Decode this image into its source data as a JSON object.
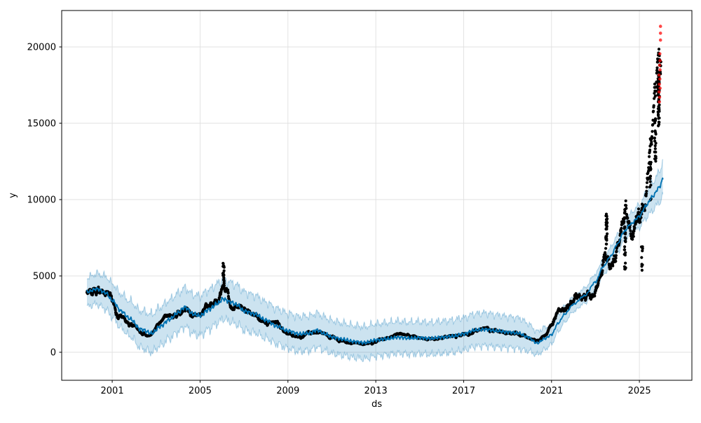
{
  "figure": {
    "background": "#ffffff"
  },
  "chart_data": {
    "type": "scatter",
    "title": "",
    "xlabel": "ds",
    "ylabel": "y",
    "xlim": [
      1998.7,
      2027.39
    ],
    "ylim": [
      -1835,
      22385
    ],
    "x_ticks": [
      2001,
      2005,
      2009,
      2013,
      2017,
      2021,
      2025
    ],
    "y_ticks": [
      0,
      5000,
      10000,
      15000,
      20000
    ],
    "grid": true,
    "legend": "none",
    "colors": {
      "observed": "#000000",
      "forecast_line": "#0072B2",
      "uncertainty_band": "rgba(0,114,178,0.2)",
      "band_edge": "rgba(0,114,178,0.30)",
      "anomaly": "#ff0000",
      "grid": "#e0e0e0",
      "spine": "#000000"
    },
    "series": [
      {
        "name": "observed",
        "type": "scatter",
        "marker_radius": 2.1,
        "x_start": 1999.85,
        "x_end": 2025.98,
        "trend": [
          [
            1999.85,
            3900
          ],
          [
            2000.1,
            4350
          ],
          [
            2000.4,
            4100
          ],
          [
            2000.7,
            4200
          ],
          [
            2001.0,
            3400
          ],
          [
            2001.3,
            2600
          ],
          [
            2001.7,
            2100
          ],
          [
            2002.0,
            1800
          ],
          [
            2002.3,
            1350
          ],
          [
            2002.7,
            1000
          ],
          [
            2003.0,
            1400
          ],
          [
            2003.4,
            2000
          ],
          [
            2003.8,
            2500
          ],
          [
            2004.1,
            2800
          ],
          [
            2004.35,
            3100
          ],
          [
            2004.7,
            2300
          ],
          [
            2005.0,
            2350
          ],
          [
            2005.4,
            2800
          ],
          [
            2005.8,
            3300
          ],
          [
            2006.0,
            4300
          ],
          [
            2006.2,
            3900
          ],
          [
            2006.45,
            3200
          ],
          [
            2006.8,
            3000
          ],
          [
            2007.2,
            2700
          ],
          [
            2007.6,
            2600
          ],
          [
            2008.0,
            2100
          ],
          [
            2008.4,
            1900
          ],
          [
            2008.8,
            1500
          ],
          [
            2009.2,
            1250
          ],
          [
            2009.6,
            1150
          ],
          [
            2010.0,
            1250
          ],
          [
            2010.25,
            1500
          ],
          [
            2010.6,
            1200
          ],
          [
            2011.0,
            950
          ],
          [
            2011.5,
            800
          ],
          [
            2012.0,
            700
          ],
          [
            2012.4,
            550
          ],
          [
            2012.8,
            650
          ],
          [
            2013.2,
            850
          ],
          [
            2013.6,
            900
          ],
          [
            2014.1,
            1050
          ],
          [
            2014.5,
            950
          ],
          [
            2015.0,
            950
          ],
          [
            2015.5,
            880
          ],
          [
            2016.0,
            1000
          ],
          [
            2016.5,
            1100
          ],
          [
            2017.0,
            1200
          ],
          [
            2017.4,
            1450
          ],
          [
            2017.8,
            1600
          ],
          [
            2018.3,
            1500
          ],
          [
            2018.8,
            1400
          ],
          [
            2019.3,
            1300
          ],
          [
            2019.7,
            1150
          ],
          [
            2020.1,
            800
          ],
          [
            2020.4,
            700
          ],
          [
            2020.7,
            950
          ],
          [
            2021.0,
            1600
          ],
          [
            2021.3,
            2300
          ],
          [
            2021.6,
            2600
          ],
          [
            2022.0,
            2950
          ],
          [
            2022.4,
            3300
          ],
          [
            2022.8,
            3800
          ],
          [
            2023.1,
            4600
          ],
          [
            2023.5,
            7200
          ],
          [
            2023.8,
            5800
          ],
          [
            2024.1,
            6300
          ],
          [
            2024.35,
            7700
          ],
          [
            2024.6,
            7200
          ],
          [
            2024.9,
            8600
          ],
          [
            2025.1,
            9300
          ],
          [
            2025.35,
            10500
          ],
          [
            2025.55,
            12000
          ],
          [
            2025.7,
            14200
          ],
          [
            2025.85,
            16600
          ],
          [
            2025.98,
            17400
          ]
        ],
        "volatility": [
          [
            1999.85,
            0.03
          ],
          [
            2006,
            0.028
          ],
          [
            2012,
            0.033
          ],
          [
            2019,
            0.028
          ],
          [
            2021,
            0.03
          ],
          [
            2023,
            0.032
          ],
          [
            2026,
            0.03
          ]
        ],
        "spike_clusters": [
          {
            "x": 2006.07,
            "lo": 4400,
            "hi": 5850,
            "n": 22
          },
          {
            "x": 2023.5,
            "lo": 6800,
            "hi": 9100,
            "n": 26
          },
          {
            "x": 2024.35,
            "lo": 5300,
            "hi": 9900,
            "n": 30
          },
          {
            "x": 2025.12,
            "lo": 5200,
            "hi": 7000,
            "n": 10
          },
          {
            "x": 2025.5,
            "lo": 9800,
            "hi": 12500,
            "n": 18
          },
          {
            "x": 2025.72,
            "lo": 12400,
            "hi": 15400,
            "n": 20
          },
          {
            "x": 2025.88,
            "lo": 14800,
            "hi": 18400,
            "n": 50
          }
        ]
      },
      {
        "name": "forecast",
        "type": "line",
        "width": 1.8,
        "x_start": 1999.85,
        "x_end": 2026.08,
        "points": [
          [
            1999.85,
            3950
          ],
          [
            2000.3,
            4150
          ],
          [
            2000.7,
            3900
          ],
          [
            2001.0,
            3400
          ],
          [
            2001.4,
            2700
          ],
          [
            2001.8,
            2200
          ],
          [
            2002.3,
            1500
          ],
          [
            2002.8,
            1250
          ],
          [
            2003.2,
            1700
          ],
          [
            2003.6,
            2150
          ],
          [
            2004.0,
            2600
          ],
          [
            2004.3,
            2950
          ],
          [
            2004.7,
            2500
          ],
          [
            2005.0,
            2400
          ],
          [
            2005.4,
            2800
          ],
          [
            2005.8,
            3200
          ],
          [
            2006.05,
            3500
          ],
          [
            2006.35,
            3300
          ],
          [
            2006.7,
            3100
          ],
          [
            2007.0,
            2700
          ],
          [
            2007.5,
            2500
          ],
          [
            2008.0,
            2100
          ],
          [
            2008.5,
            1700
          ],
          [
            2009.0,
            1400
          ],
          [
            2009.5,
            1200
          ],
          [
            2010.0,
            1250
          ],
          [
            2010.3,
            1450
          ],
          [
            2010.7,
            1200
          ],
          [
            2011.0,
            1000
          ],
          [
            2011.5,
            850
          ],
          [
            2012.0,
            700
          ],
          [
            2012.5,
            620
          ],
          [
            2013.0,
            800
          ],
          [
            2013.5,
            880
          ],
          [
            2014.0,
            980
          ],
          [
            2014.5,
            920
          ],
          [
            2015.0,
            950
          ],
          [
            2015.5,
            900
          ],
          [
            2016.0,
            980
          ],
          [
            2016.5,
            1050
          ],
          [
            2017.0,
            1200
          ],
          [
            2017.5,
            1450
          ],
          [
            2018.0,
            1500
          ],
          [
            2018.5,
            1400
          ],
          [
            2019.0,
            1320
          ],
          [
            2019.5,
            1250
          ],
          [
            2019.9,
            1000
          ],
          [
            2020.35,
            600
          ],
          [
            2020.7,
            900
          ],
          [
            2021.0,
            1150
          ],
          [
            2021.3,
            1900
          ],
          [
            2021.6,
            2500
          ],
          [
            2022.0,
            3150
          ],
          [
            2022.5,
            3700
          ],
          [
            2023.0,
            4600
          ],
          [
            2023.35,
            5600
          ],
          [
            2023.7,
            6300
          ],
          [
            2024.0,
            7100
          ],
          [
            2024.3,
            7900
          ],
          [
            2024.6,
            8400
          ],
          [
            2025.0,
            8900
          ],
          [
            2025.3,
            9600
          ],
          [
            2025.6,
            10200
          ],
          [
            2025.9,
            10800
          ],
          [
            2026.08,
            11350
          ]
        ]
      },
      {
        "name": "uncertainty",
        "type": "band",
        "halfwidth": [
          [
            1999.85,
            950
          ],
          [
            2001,
            1100
          ],
          [
            2003,
            1250
          ],
          [
            2006,
            1300
          ],
          [
            2009,
            1150
          ],
          [
            2012,
            1050
          ],
          [
            2015,
            1050
          ],
          [
            2018,
            1070
          ],
          [
            2019.5,
            1000
          ],
          [
            2020.5,
            750
          ],
          [
            2021.3,
            550
          ],
          [
            2022,
            480
          ],
          [
            2023,
            520
          ],
          [
            2024,
            600
          ],
          [
            2025,
            750
          ],
          [
            2025.8,
            950
          ],
          [
            2026.08,
            1150
          ]
        ]
      },
      {
        "name": "anomalies",
        "type": "scatter",
        "marker_radius": 2.3,
        "opacity": 0.72,
        "points": [
          [
            2025.96,
            21350
          ],
          [
            2025.96,
            20900
          ],
          [
            2025.96,
            20450
          ],
          [
            2025.93,
            19550
          ],
          [
            2025.94,
            19100
          ],
          [
            2025.92,
            18800
          ],
          [
            2025.94,
            18500
          ],
          [
            2025.9,
            18150
          ],
          [
            2025.93,
            17900
          ],
          [
            2025.91,
            17550
          ],
          [
            2025.94,
            17300
          ],
          [
            2025.9,
            17050
          ],
          [
            2025.92,
            16700
          ],
          [
            2025.91,
            16400
          ]
        ]
      }
    ]
  }
}
